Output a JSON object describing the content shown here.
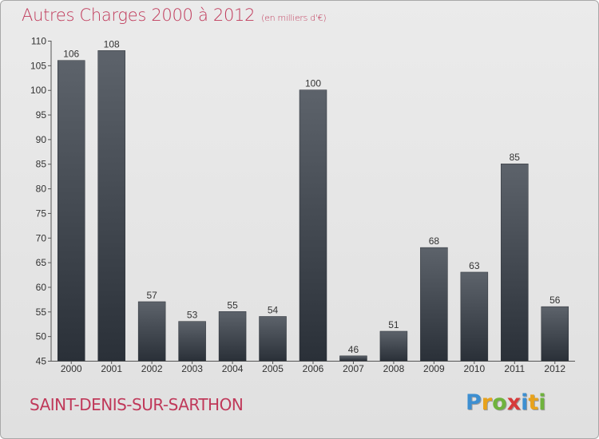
{
  "header": {
    "title": "Autres Charges 2000 à 2012",
    "subtitle": "(en milliers d'€)"
  },
  "footer": {
    "town": "SAINT-DENIS-SUR-SARTHON"
  },
  "logo": {
    "letters": [
      "P",
      "r",
      "o",
      "x",
      "i",
      "t",
      "i"
    ],
    "colors": [
      "#3d8fd1",
      "#e8a21b",
      "#6fb33d",
      "#d63a3a",
      "#3d8fd1",
      "#e8a21b",
      "#6fb33d"
    ]
  },
  "chart_data": {
    "type": "bar",
    "categories": [
      "2000",
      "2001",
      "2002",
      "2003",
      "2004",
      "2005",
      "2006",
      "2007",
      "2008",
      "2009",
      "2010",
      "2011",
      "2012"
    ],
    "values": [
      106,
      108,
      57,
      53,
      55,
      54,
      100,
      46,
      51,
      68,
      63,
      85,
      56
    ],
    "title": "Autres Charges 2000 à 2012",
    "ylim": [
      45,
      110
    ],
    "yticks": [
      45,
      50,
      55,
      60,
      65,
      70,
      75,
      80,
      85,
      90,
      95,
      100,
      105,
      110
    ],
    "grid": false,
    "legend": "none",
    "colors": {
      "bar_top": "#5d636b",
      "bar_bottom": "#2a3038",
      "label": "#333333"
    }
  }
}
